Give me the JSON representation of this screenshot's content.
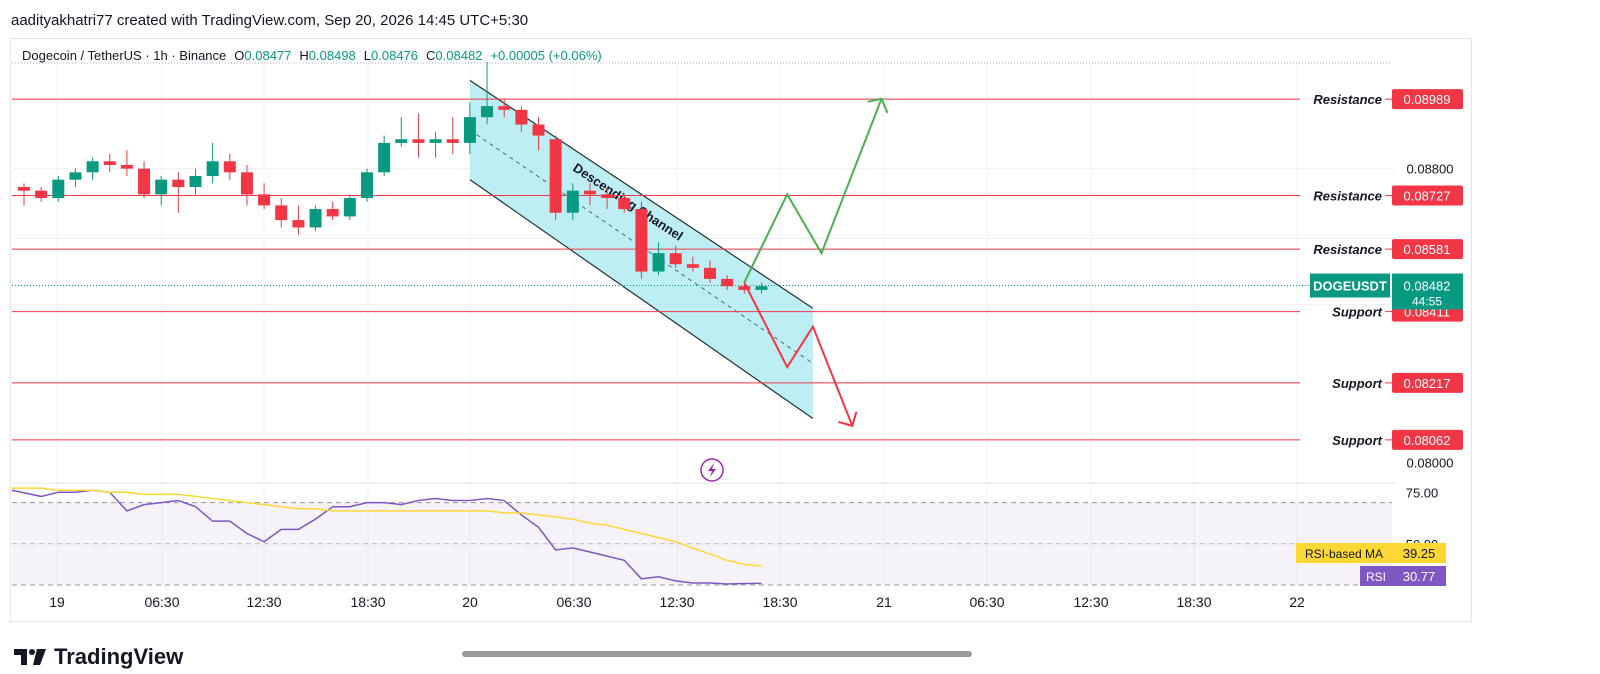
{
  "header": {
    "credit": "aadityakhatri77 created with TradingView.com, Sep 20, 2026 14:45 UTC+5:30"
  },
  "legend": {
    "symbol": "Dogecoin / TetherUS · 1h · Binance",
    "o_label": "O",
    "o": "0.08477",
    "h_label": "H",
    "h": "0.08498",
    "l_label": "L",
    "l": "0.08476",
    "c_label": "C",
    "c": "0.08482",
    "change": "+0.00005 (+0.06%)"
  },
  "footer": {
    "brand": "TradingView"
  },
  "colors": {
    "up": "#089981",
    "down": "#f23645",
    "level": "#f23645",
    "channel_fill": "#b2ebf2",
    "rsi": "#7e57c2",
    "rsi_ma": "#fdd835",
    "arrow_up": "#4caf50",
    "arrow_down": "#f23645"
  },
  "chart_data": [
    {
      "type": "candlestick",
      "title": "Dogecoin / TetherUS · 1h · Binance",
      "x_ticks": [
        "19",
        "06:30",
        "12:30",
        "18:30",
        "20",
        "06:30",
        "12:30",
        "18:30",
        "21",
        "06:30",
        "12:30",
        "18:30",
        "22"
      ],
      "y_ticks": [
        "0.08800",
        "0.08000"
      ],
      "ylim": [
        0.0798,
        0.0915
      ],
      "candles": [
        [
          0.0875,
          0.0876,
          0.087,
          0.0874
        ],
        [
          0.0874,
          0.0875,
          0.0871,
          0.0872
        ],
        [
          0.0872,
          0.0878,
          0.0871,
          0.0877
        ],
        [
          0.0877,
          0.088,
          0.0875,
          0.0879
        ],
        [
          0.0879,
          0.0883,
          0.0877,
          0.0882
        ],
        [
          0.0882,
          0.0884,
          0.0879,
          0.0881
        ],
        [
          0.0881,
          0.0885,
          0.0878,
          0.088
        ],
        [
          0.088,
          0.0882,
          0.0872,
          0.0873
        ],
        [
          0.0873,
          0.0878,
          0.087,
          0.0877
        ],
        [
          0.0877,
          0.0879,
          0.0868,
          0.0875
        ],
        [
          0.0875,
          0.088,
          0.0873,
          0.0878
        ],
        [
          0.0878,
          0.0887,
          0.0876,
          0.0882
        ],
        [
          0.0882,
          0.0884,
          0.0877,
          0.0879
        ],
        [
          0.0879,
          0.0881,
          0.087,
          0.0873
        ],
        [
          0.0873,
          0.0876,
          0.0869,
          0.087
        ],
        [
          0.087,
          0.0872,
          0.0864,
          0.0866
        ],
        [
          0.0866,
          0.087,
          0.0862,
          0.0864
        ],
        [
          0.0864,
          0.087,
          0.0863,
          0.0869
        ],
        [
          0.0869,
          0.0871,
          0.0866,
          0.0867
        ],
        [
          0.0867,
          0.0873,
          0.0866,
          0.0872
        ],
        [
          0.0872,
          0.088,
          0.0871,
          0.0879
        ],
        [
          0.0879,
          0.0889,
          0.0878,
          0.0887
        ],
        [
          0.0887,
          0.0894,
          0.0886,
          0.0888
        ],
        [
          0.0888,
          0.0895,
          0.0883,
          0.0887
        ],
        [
          0.0887,
          0.089,
          0.0883,
          0.0888
        ],
        [
          0.0888,
          0.0894,
          0.0884,
          0.0887
        ],
        [
          0.0887,
          0.0898,
          0.0884,
          0.0894
        ],
        [
          0.0894,
          0.0909,
          0.0892,
          0.0897
        ],
        [
          0.0897,
          0.0899,
          0.0894,
          0.0896
        ],
        [
          0.0896,
          0.0897,
          0.089,
          0.0892
        ],
        [
          0.0892,
          0.0894,
          0.0885,
          0.0889
        ],
        [
          0.0888,
          0.0889,
          0.0866,
          0.0868
        ],
        [
          0.0868,
          0.0876,
          0.0866,
          0.0874
        ],
        [
          0.0874,
          0.0876,
          0.087,
          0.0873
        ],
        [
          0.0873,
          0.0875,
          0.0869,
          0.0872
        ],
        [
          0.0872,
          0.0873,
          0.0868,
          0.0869
        ],
        [
          0.0869,
          0.0871,
          0.085,
          0.0852
        ],
        [
          0.0852,
          0.086,
          0.0851,
          0.0857
        ],
        [
          0.0857,
          0.0859,
          0.0853,
          0.0854
        ],
        [
          0.0854,
          0.0856,
          0.0852,
          0.0853
        ],
        [
          0.0853,
          0.0855,
          0.0849,
          0.085
        ],
        [
          0.085,
          0.0851,
          0.0847,
          0.0848
        ],
        [
          0.0848,
          0.0849,
          0.0846,
          0.0847
        ],
        [
          0.0847,
          0.0849,
          0.0846,
          0.0848
        ]
      ],
      "levels": [
        {
          "label": "Resistance",
          "price": "0.08989",
          "value": 0.08989
        },
        {
          "label": "Resistance",
          "price": "0.08727",
          "value": 0.08727
        },
        {
          "label": "Resistance",
          "price": "0.08581",
          "value": 0.08581
        },
        {
          "label": "Support",
          "price": "0.08411",
          "value": 0.08411
        },
        {
          "label": "Support",
          "price": "0.08217",
          "value": 0.08217
        },
        {
          "label": "Support",
          "price": "0.08062",
          "value": 0.08062
        }
      ],
      "current": {
        "symbol": "DOGEUSDT",
        "price": "0.08482",
        "countdown": "44:55",
        "value": 0.08482
      },
      "annotation": "Descending Channel",
      "channel": {
        "upper": [
          [
            26,
            0.0904
          ],
          [
            46,
            0.0842
          ]
        ],
        "lower": [
          [
            26,
            0.0877
          ],
          [
            46,
            0.0812
          ]
        ]
      },
      "projection_up": [
        [
          42,
          0.0849
        ],
        [
          44.5,
          0.0873
        ],
        [
          46.5,
          0.0857
        ],
        [
          50,
          0.0899
        ]
      ],
      "projection_down": [
        [
          42,
          0.0849
        ],
        [
          44.5,
          0.0826
        ],
        [
          46,
          0.0837
        ],
        [
          48.3,
          0.081
        ]
      ]
    },
    {
      "type": "line",
      "y_ticks": [
        "75.00",
        "50.00"
      ],
      "ylim": [
        30,
        80
      ],
      "band": [
        30,
        70
      ],
      "series": [
        {
          "name": "RSI",
          "last": "30.77",
          "values": [
            76,
            73,
            75,
            75,
            76,
            75,
            66,
            69,
            70,
            71,
            68,
            61,
            61,
            55,
            51,
            57,
            57,
            62,
            68,
            68,
            70,
            70,
            69,
            71,
            72,
            71,
            71,
            72,
            71,
            64,
            58,
            47,
            48,
            46,
            44,
            42,
            33,
            34,
            32,
            31,
            31,
            30.5,
            30.7,
            30.77
          ]
        },
        {
          "name": "RSI-based MA",
          "last": "39.25",
          "values": [
            77,
            77,
            76,
            76,
            76,
            75,
            75,
            74,
            74,
            74,
            73,
            72,
            71,
            70,
            69,
            68,
            67,
            67,
            66,
            66,
            66,
            66,
            66,
            66,
            66,
            66,
            66,
            66,
            65,
            65,
            64,
            63,
            62,
            60,
            59,
            57,
            55,
            53,
            51,
            48,
            45,
            42,
            40,
            39.25
          ]
        }
      ]
    }
  ]
}
